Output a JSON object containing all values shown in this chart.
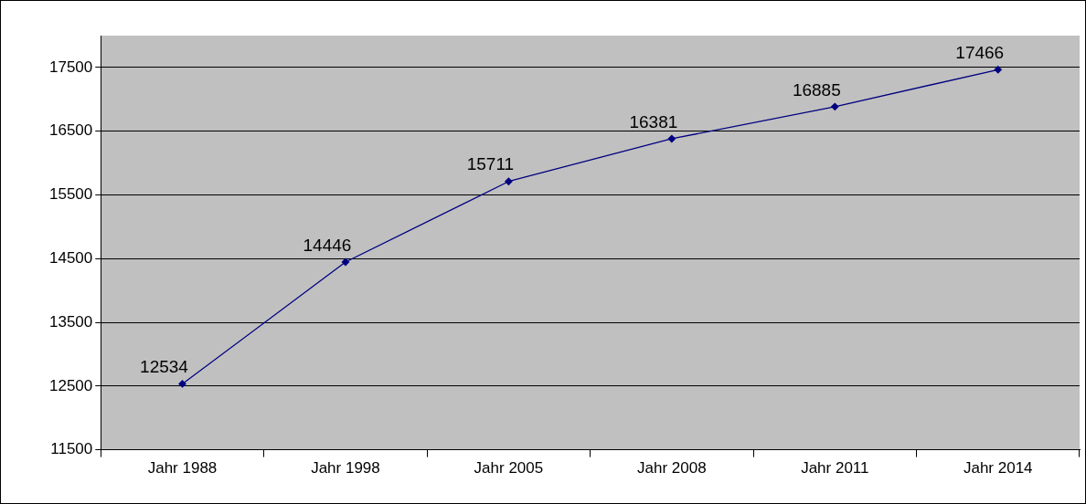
{
  "chart_data": {
    "type": "line",
    "categories": [
      "Jahr 1988",
      "Jahr 1998",
      "Jahr 2005",
      "Jahr 2008",
      "Jahr 2011",
      "Jahr 2014"
    ],
    "series": [
      {
        "color": "#000080",
        "values": [
          12534,
          14446,
          15711,
          16381,
          16885,
          17466
        ]
      }
    ],
    "ylim": [
      11500,
      18000
    ],
    "yticks": [
      11500,
      12500,
      13500,
      14500,
      15500,
      16500,
      17500
    ],
    "grid": "y",
    "marker": "diamond",
    "line_style": "solid",
    "data_labels": true,
    "legend": false
  }
}
